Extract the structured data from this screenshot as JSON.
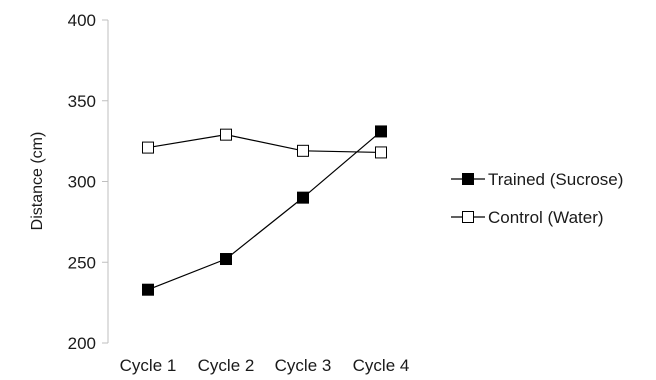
{
  "chart_data": {
    "type": "line",
    "title": "",
    "xlabel": "",
    "ylabel": "Distance (cm)",
    "categories": [
      "Cycle 1",
      "Cycle 2",
      "Cycle 3",
      "Cycle 4"
    ],
    "ylim": [
      200,
      400
    ],
    "yticks": [
      200,
      250,
      300,
      350,
      400
    ],
    "grid": false,
    "legend_position": "right",
    "series": [
      {
        "name": "Trained (Sucrose)",
        "values": [
          233,
          252,
          290,
          331
        ],
        "marker": "square-filled",
        "color": "#000000"
      },
      {
        "name": "Control (Water)",
        "values": [
          321,
          329,
          319,
          318
        ],
        "marker": "square-open",
        "color": "#000000"
      }
    ]
  }
}
